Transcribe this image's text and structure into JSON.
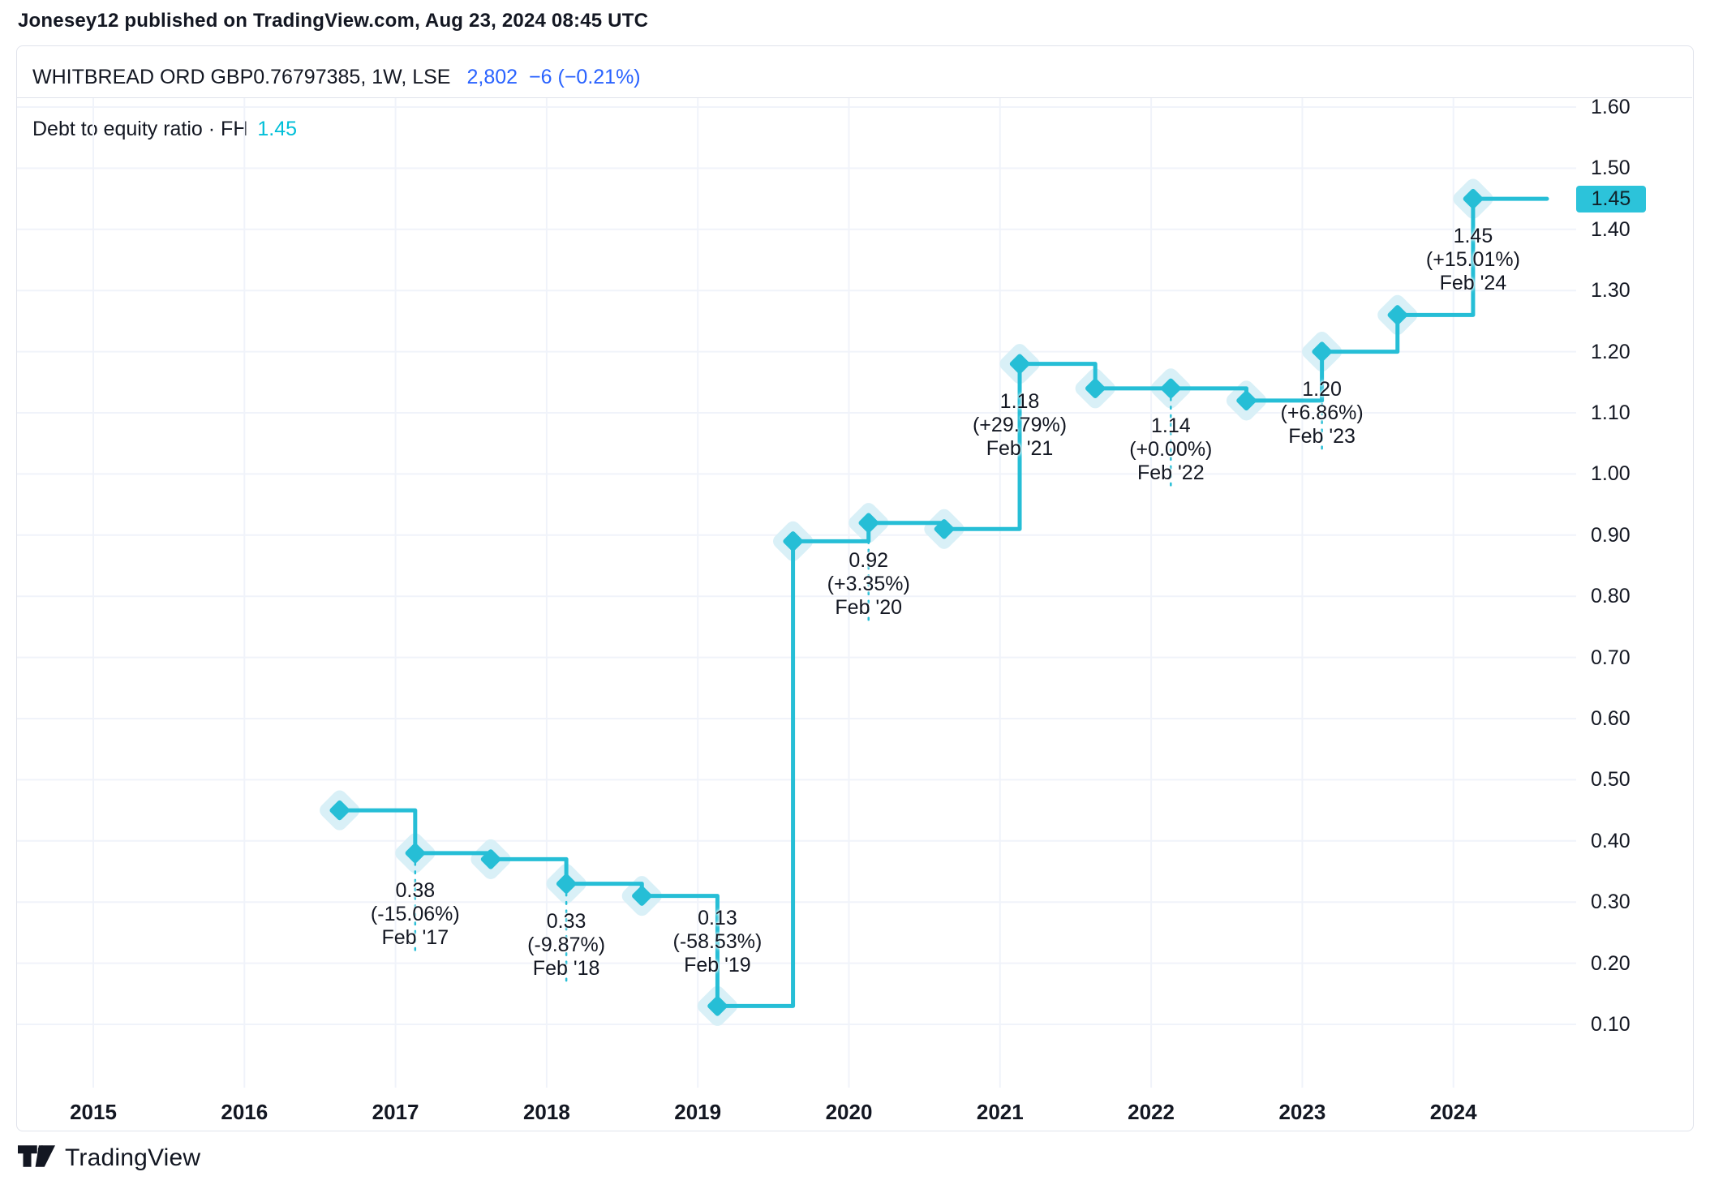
{
  "header": {
    "published_line": "Jonesey12 published on TradingView.com, Aug 23, 2024 08:45 UTC"
  },
  "ticker": {
    "symbol_line": "WHITBREAD ORD GBP0.76797385, 1W, LSE",
    "price": "2,802",
    "change": "−6 (−0.21%)"
  },
  "legend": {
    "label": "Debt to equity ratio · FH",
    "value": "1.45"
  },
  "price_axis": {
    "badge": "1.45",
    "ticks": [
      "1.60",
      "1.50",
      "1.40",
      "1.30",
      "1.20",
      "1.10",
      "1.00",
      "0.90",
      "0.80",
      "0.70",
      "0.60",
      "0.50",
      "0.40",
      "0.30",
      "0.20",
      "0.10"
    ]
  },
  "time_axis": {
    "years": [
      "2015",
      "2016",
      "2017",
      "2018",
      "2019",
      "2020",
      "2021",
      "2022",
      "2023",
      "2024"
    ]
  },
  "footer": {
    "brand": "TradingView",
    "logo_icon": "tradingview-logo"
  },
  "colors": {
    "accent": "#26bed6",
    "marker_halo": "#d9f0f7",
    "badge_bg": "#2cc3da",
    "link_blue": "#2962ff",
    "text": "#131722",
    "grid": "#f0f3fa",
    "border": "#e0e3eb",
    "legend_value": "#00bfd8"
  },
  "chart_data": {
    "type": "line",
    "line_style": "step",
    "title": "Debt to equity ratio · FH",
    "grid": true,
    "legend_position": "top-left",
    "ylim": [
      0.05,
      1.65
    ],
    "xlim": [
      2014.5,
      2025.0
    ],
    "yticks": [
      1.6,
      1.5,
      1.4,
      1.3,
      1.2,
      1.1,
      1.0,
      0.9,
      0.8,
      0.7,
      0.6,
      0.5,
      0.4,
      0.3,
      0.2,
      0.1
    ],
    "xticks": [
      2015,
      2016,
      2017,
      2018,
      2019,
      2020,
      2021,
      2022,
      2023,
      2024
    ],
    "last_value_badge": "1.45",
    "points": [
      {
        "date": "Aug '16",
        "t": 2016.63,
        "value": 0.45
      },
      {
        "date": "Feb '17",
        "t": 2017.13,
        "value": 0.38,
        "label": {
          "value": "0.38",
          "change": "(-15.06%)",
          "date": "Feb '17",
          "position": "below"
        }
      },
      {
        "date": "Aug '17",
        "t": 2017.63,
        "value": 0.37
      },
      {
        "date": "Feb '18",
        "t": 2018.13,
        "value": 0.33,
        "label": {
          "value": "0.33",
          "change": "(-9.87%)",
          "date": "Feb '18",
          "position": "below"
        }
      },
      {
        "date": "Aug '18",
        "t": 2018.63,
        "value": 0.31
      },
      {
        "date": "Feb '19",
        "t": 2019.13,
        "value": 0.13,
        "label": {
          "value": "0.13",
          "change": "(-58.53%)",
          "date": "Feb '19",
          "position": "above"
        }
      },
      {
        "date": "Aug '19",
        "t": 2019.63,
        "value": 0.89
      },
      {
        "date": "Feb '20",
        "t": 2020.13,
        "value": 0.92,
        "label": {
          "value": "0.92",
          "change": "(+3.35%)",
          "date": "Feb '20",
          "position": "below"
        }
      },
      {
        "date": "Aug '20",
        "t": 2020.63,
        "value": 0.91
      },
      {
        "date": "Feb '21",
        "t": 2021.13,
        "value": 1.18,
        "label": {
          "value": "1.18",
          "change": "(+29.79%)",
          "date": "Feb '21",
          "position": "below"
        }
      },
      {
        "date": "Aug '21",
        "t": 2021.63,
        "value": 1.14
      },
      {
        "date": "Feb '22",
        "t": 2022.13,
        "value": 1.14,
        "label": {
          "value": "1.14",
          "change": "(+0.00%)",
          "date": "Feb '22",
          "position": "below"
        }
      },
      {
        "date": "Aug '22",
        "t": 2022.63,
        "value": 1.12
      },
      {
        "date": "Feb '23",
        "t": 2023.13,
        "value": 1.2,
        "label": {
          "value": "1.20",
          "change": "(+6.86%)",
          "date": "Feb '23",
          "position": "below"
        }
      },
      {
        "date": "Aug '23",
        "t": 2023.63,
        "value": 1.26
      },
      {
        "date": "Feb '24",
        "t": 2024.13,
        "value": 1.45,
        "label": {
          "value": "1.45",
          "change": "(+15.01%)",
          "date": "Feb '24",
          "position": "below"
        }
      }
    ]
  }
}
